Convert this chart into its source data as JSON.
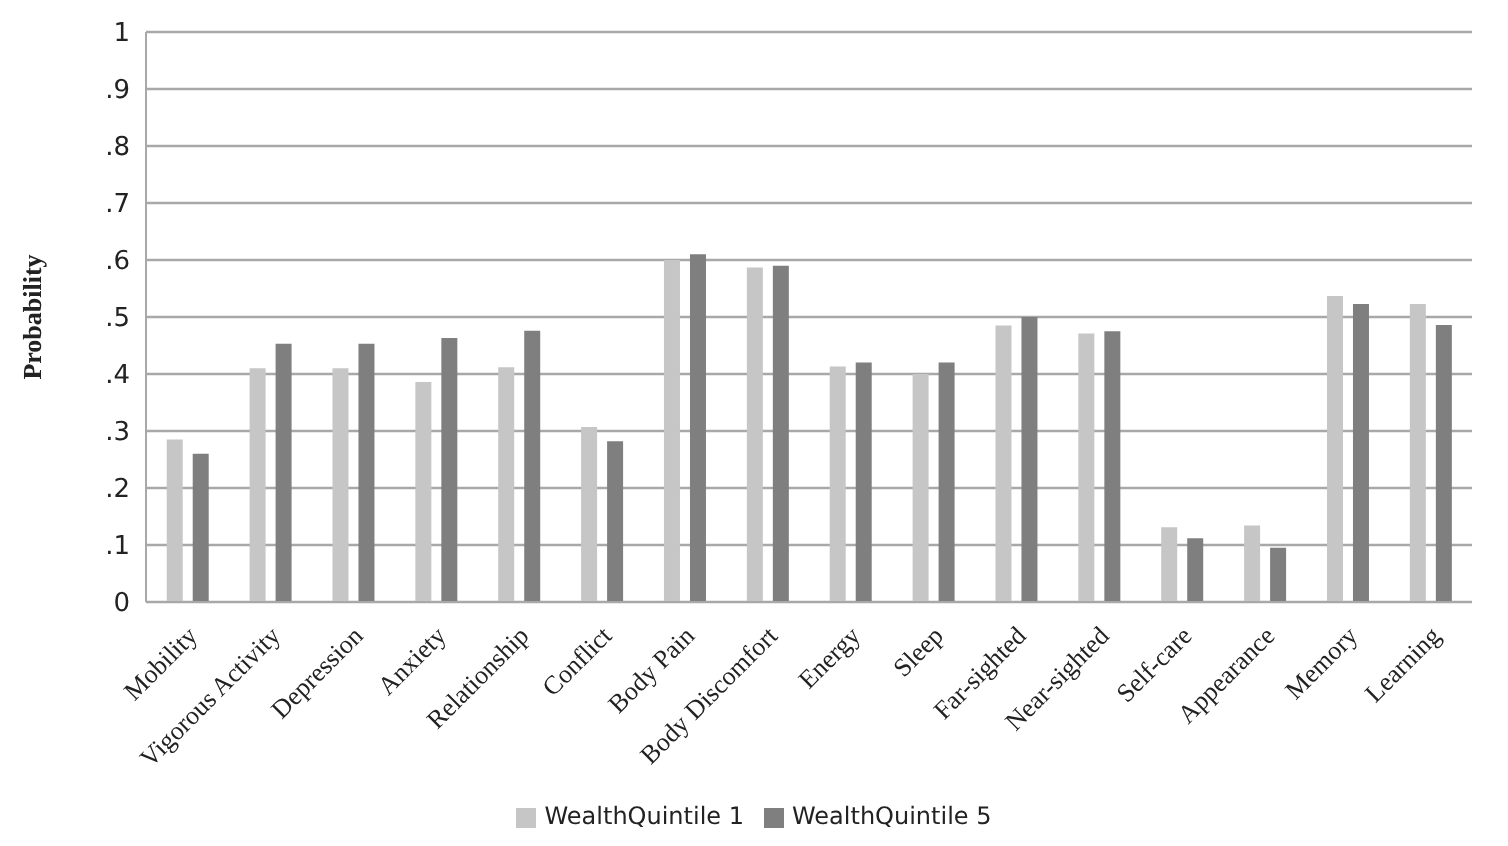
{
  "chart_data": {
    "type": "bar",
    "ylabel": "Probability",
    "categories": [
      "Mobility",
      "Vigorous Activity",
      "Depression",
      "Anxiety",
      "Relationship",
      "Conflict",
      "Body Pain",
      "Body Discomfort",
      "Energy",
      "Sleep",
      "Far-sighted",
      "Near-sighted",
      "Self-care",
      "Appearance",
      "Memory",
      "Learning"
    ],
    "series": [
      {
        "name": "WealthQuintile 1",
        "color": "#c6c6c6",
        "values": [
          0.285,
          0.41,
          0.41,
          0.386,
          0.412,
          0.307,
          0.6,
          0.587,
          0.413,
          0.4,
          0.485,
          0.471,
          0.131,
          0.134,
          0.537,
          0.523
        ]
      },
      {
        "name": "WealthQuintile 5",
        "color": "#7f7f7f",
        "values": [
          0.26,
          0.453,
          0.453,
          0.463,
          0.476,
          0.282,
          0.61,
          0.59,
          0.42,
          0.42,
          0.5,
          0.475,
          0.112,
          0.095,
          0.523,
          0.486
        ]
      }
    ],
    "ylim": [
      0,
      1
    ],
    "yticks": [
      0,
      {
        "value": 0.1,
        "label": ".1"
      },
      {
        "value": 0.2,
        "label": ".2"
      },
      {
        "value": 0.3,
        "label": ".3"
      },
      {
        "value": 0.4,
        "label": ".4"
      },
      {
        "value": 0.5,
        "label": ".5"
      },
      {
        "value": 0.6,
        "label": ".6"
      },
      {
        "value": 0.7,
        "label": ".7"
      },
      {
        "value": 0.8,
        "label": ".8"
      },
      {
        "value": 0.9,
        "label": ".9"
      },
      1
    ],
    "grid": "y",
    "legend": "bottom"
  }
}
